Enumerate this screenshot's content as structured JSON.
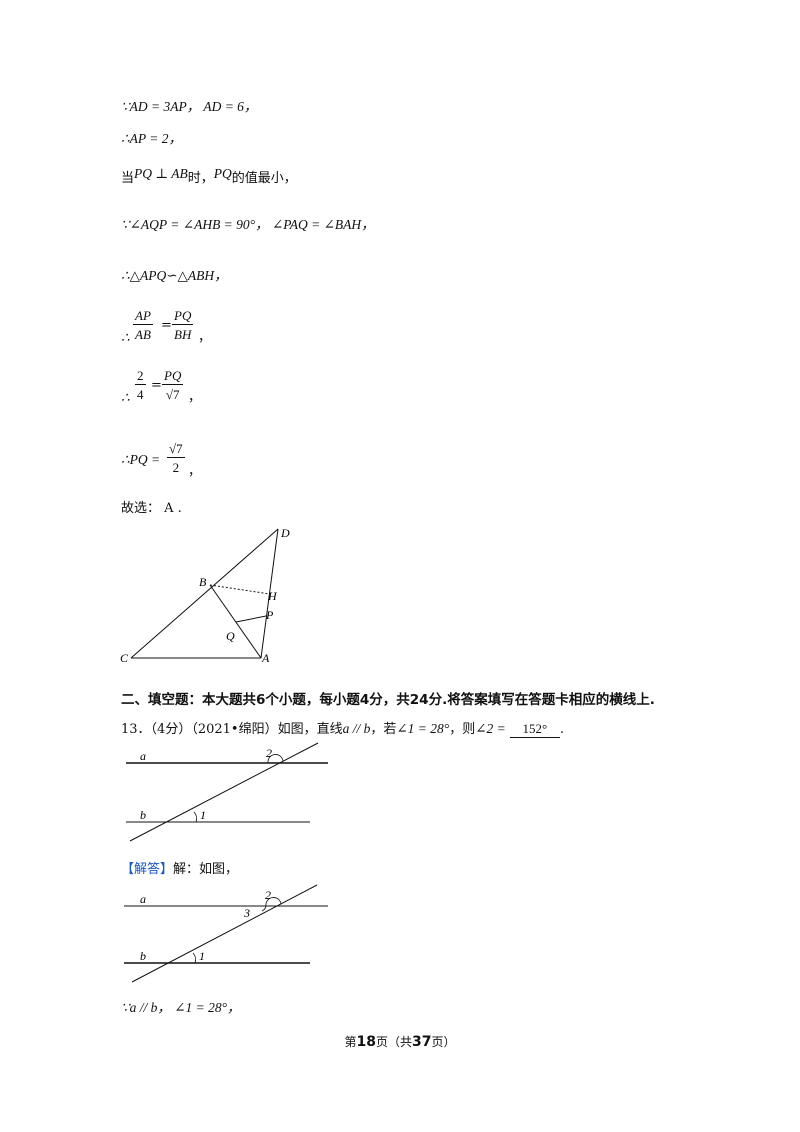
{
  "lines": {
    "l1": "∵AD = 3AP， AD = 6，",
    "l2": "∴AP = 2，",
    "l3_pre": "当",
    "l3_math1": "PQ ⊥ AB",
    "l3_mid": "时，",
    "l3_math2": "PQ",
    "l3_post": "的值最小，",
    "l4": "∵∠AQP = ∠AHB = 90°， ∠PAQ = ∠BAH，",
    "l5": "∴△APQ∽△ABH，",
    "l6_prefix": "∴",
    "l6_frac1_num": "AP",
    "l6_frac1_den": "AB",
    "l6_eq": "=",
    "l6_frac2_num": "PQ",
    "l6_frac2_den": "BH",
    "l6_suffix": "，",
    "l7_prefix": "∴",
    "l7_frac1_num": "2",
    "l7_frac1_den": "4",
    "l7_eq": "=",
    "l7_frac2_num": "PQ",
    "l7_frac2_den": "√7",
    "l7_suffix": "，",
    "l8_prefix": "∴PQ =",
    "l8_frac_num": "√7",
    "l8_frac_den": "2",
    "l8_suffix": "，",
    "l9": "故选： A ."
  },
  "fig1_labels": {
    "D": "D",
    "B": "B",
    "H": "H",
    "P": "P",
    "Q": "Q",
    "C": "C",
    "A": "A"
  },
  "section_heading": "二、填空题：本大题共6个小题，每小题4分，共24分.将答案填写在答题卡相应的横线上.",
  "q13": {
    "prefix": "13．（4分）（2021•绵阳）如图，直线",
    "math1": "a // b",
    "mid1": "，若",
    "math2": "∠1 = 28°",
    "mid2": "，则",
    "math3": "∠2 =",
    "answer": "152°",
    "suffix": "."
  },
  "fig2_labels": {
    "a": "a",
    "b": "b",
    "one": "1",
    "two": "2"
  },
  "solution": {
    "tag": "【解答】",
    "text": "解：如图，"
  },
  "fig3_labels": {
    "a": "a",
    "b": "b",
    "one": "1",
    "two": "2",
    "three": "3"
  },
  "last_line": "∵a // b， ∠1 = 28°，",
  "footer": {
    "pre": "第",
    "page": "18",
    "mid": "页（共",
    "total": "37",
    "post": "页）"
  }
}
